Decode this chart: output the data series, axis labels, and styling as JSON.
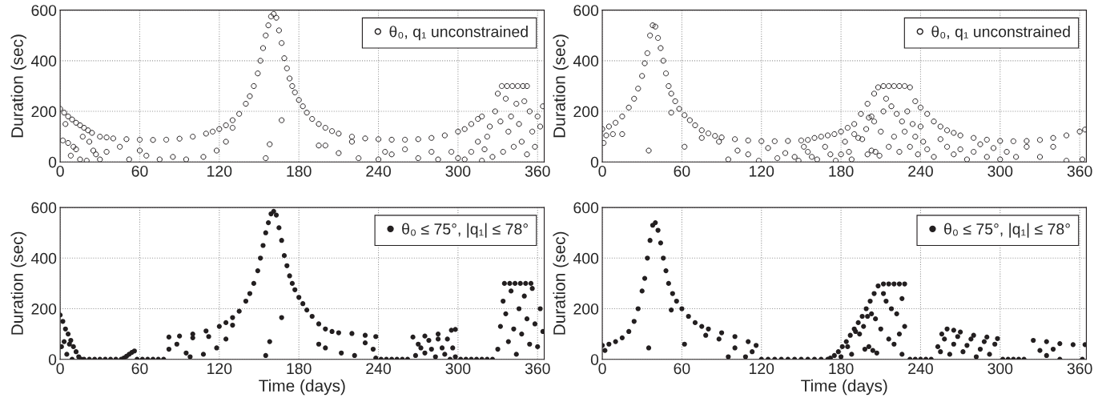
{
  "chart_data": [
    {
      "type": "scatter",
      "ylabel": "Duration (sec)",
      "xlim": [
        0,
        365
      ],
      "xticks": [
        0,
        60,
        120,
        180,
        240,
        300,
        360
      ],
      "ylim": [
        0,
        600
      ],
      "yticks": [
        0,
        200,
        400,
        600
      ],
      "grid": true,
      "legend": "top right",
      "marker": "circle",
      "series": [
        {
          "name": "θ₀, q₁ unconstrained",
          "color": "#231f20",
          "x": [
            0,
            3,
            6,
            9,
            12,
            15,
            18,
            21,
            24,
            30,
            35,
            40,
            50,
            60,
            70,
            80,
            90,
            100,
            110,
            115,
            120,
            125,
            130,
            135,
            140,
            143,
            146,
            149,
            151,
            153,
            155,
            157,
            159,
            161,
            163,
            165,
            167,
            169,
            171,
            173,
            175,
            177,
            180,
            183,
            186,
            190,
            195,
            200,
            205,
            210,
            220,
            230,
            240,
            250,
            260,
            270,
            280,
            290,
            300,
            305,
            310,
            315,
            318,
            333,
            337,
            341,
            345,
            349,
            352,
            2,
            4,
            6,
            8,
            10,
            12,
            15,
            17,
            20,
            22,
            25,
            27,
            30,
            35,
            45,
            52,
            60,
            65,
            75,
            85,
            95,
            108,
            118,
            125,
            130,
            155,
            158,
            167,
            195,
            200,
            210,
            220,
            225,
            240,
            245,
            250,
            260,
            270,
            280,
            285,
            295,
            300,
            305,
            310,
            315,
            318,
            320,
            322,
            324,
            326,
            328,
            330,
            332,
            334,
            336,
            338,
            340,
            342,
            344,
            346,
            348,
            350,
            352,
            354,
            356,
            358,
            360,
            362,
            364
          ],
          "values": [
            210,
            195,
            180,
            168,
            155,
            145,
            135,
            125,
            115,
            100,
            97,
            93,
            90,
            88,
            87,
            88,
            92,
            100,
            112,
            120,
            130,
            145,
            165,
            190,
            230,
            260,
            300,
            350,
            400,
            450,
            500,
            540,
            575,
            585,
            570,
            520,
            470,
            410,
            370,
            330,
            300,
            275,
            245,
            220,
            195,
            170,
            150,
            135,
            122,
            112,
            100,
            93,
            90,
            88,
            88,
            90,
            95,
            105,
            120,
            130,
            150,
            170,
            180,
            300,
            300,
            300,
            300,
            300,
            300,
            85,
            150,
            75,
            25,
            60,
            50,
            10,
            100,
            5,
            80,
            45,
            30,
            10,
            40,
            60,
            10,
            45,
            25,
            10,
            20,
            10,
            20,
            45,
            80,
            135,
            15,
            70,
            165,
            65,
            65,
            35,
            80,
            15,
            10,
            40,
            30,
            50,
            15,
            40,
            10,
            40,
            15,
            10,
            40,
            80,
            5,
            50,
            100,
            140,
            20,
            200,
            270,
            160,
            40,
            250,
            120,
            180,
            60,
            230,
            150,
            80,
            240,
            30,
            200,
            120,
            60,
            180,
            140,
            220
          ]
        }
      ]
    },
    {
      "type": "scatter",
      "ylabel": "Duration (sec)",
      "xlim": [
        0,
        365
      ],
      "xticks": [
        0,
        60,
        120,
        180,
        240,
        300,
        360
      ],
      "ylim": [
        0,
        600
      ],
      "yticks": [
        0,
        200,
        400,
        600
      ],
      "grid": true,
      "legend": "top right",
      "marker": "circle",
      "series": [
        {
          "name": "θ₀, q₁ unconstrained",
          "color": "#231f20",
          "x": [
            0,
            5,
            10,
            15,
            20,
            24,
            27,
            30,
            32,
            34,
            36,
            38,
            40,
            42,
            44,
            46,
            48,
            50,
            52,
            55,
            58,
            62,
            66,
            70,
            75,
            80,
            85,
            90,
            100,
            110,
            120,
            130,
            140,
            150,
            155,
            160,
            165,
            170,
            175,
            180,
            185,
            190,
            195,
            200,
            205,
            208,
            212,
            216,
            220,
            224,
            228,
            232,
            236,
            240,
            245,
            250,
            255,
            260,
            265,
            270,
            280,
            290,
            300,
            310,
            320,
            330,
            340,
            350,
            360,
            364,
            1,
            3,
            8,
            15,
            35,
            52,
            62,
            75,
            88,
            95,
            102,
            110,
            118,
            125,
            132,
            138,
            145,
            148,
            152,
            155,
            158,
            162,
            168,
            172,
            176,
            180,
            183,
            186,
            188,
            190,
            193,
            196,
            199,
            201,
            203,
            205,
            200,
            203,
            206,
            209,
            210,
            212,
            214,
            216,
            218,
            220,
            222,
            224,
            226,
            228,
            230,
            232,
            234,
            236,
            238,
            240,
            242,
            245,
            250,
            255,
            260,
            265,
            270,
            275,
            280,
            285,
            290,
            295,
            300,
            305,
            312,
            320,
            330,
            340,
            350,
            362
          ],
          "values": [
            130,
            140,
            155,
            180,
            215,
            250,
            290,
            340,
            390,
            430,
            500,
            540,
            535,
            490,
            450,
            400,
            350,
            300,
            270,
            240,
            210,
            185,
            165,
            145,
            125,
            113,
            103,
            97,
            90,
            85,
            82,
            82,
            83,
            85,
            87,
            95,
            100,
            105,
            110,
            120,
            135,
            150,
            190,
            230,
            270,
            295,
            300,
            300,
            300,
            300,
            300,
            295,
            240,
            215,
            190,
            160,
            140,
            125,
            115,
            105,
            95,
            88,
            83,
            82,
            83,
            87,
            95,
            105,
            120,
            128,
            75,
            105,
            110,
            110,
            45,
            195,
            60,
            95,
            80,
            10,
            45,
            30,
            5,
            55,
            15,
            35,
            20,
            5,
            60,
            40,
            20,
            10,
            60,
            30,
            5,
            30,
            80,
            40,
            10,
            110,
            95,
            90,
            130,
            175,
            180,
            160,
            30,
            45,
            40,
            25,
            120,
            200,
            250,
            60,
            220,
            100,
            190,
            40,
            160,
            120,
            200,
            60,
            150,
            100,
            30,
            140,
            80,
            50,
            20,
            90,
            60,
            30,
            50,
            10,
            40,
            70,
            20,
            55,
            10,
            40,
            20,
            60,
            20,
            60,
            5,
            10
          ]
        }
      ]
    },
    {
      "type": "scatter",
      "xlabel": "Time (days)",
      "ylabel": "Duration (sec)",
      "xlim": [
        0,
        365
      ],
      "xticks": [
        0,
        60,
        120,
        180,
        240,
        300,
        360
      ],
      "ylim": [
        0,
        600
      ],
      "yticks": [
        0,
        200,
        400,
        600
      ],
      "grid": true,
      "legend": "top right",
      "marker": "circle",
      "series": [
        {
          "name": "θ₀ ≤ 75°, |q₁| ≤ 78°",
          "color": "#231f20",
          "x": [
            0,
            2,
            4,
            6,
            8,
            10,
            12,
            14,
            16,
            18,
            22,
            26,
            30,
            34,
            38,
            42,
            46,
            48,
            50,
            52,
            54,
            56,
            58,
            62,
            66,
            70,
            74,
            78,
            82,
            90,
            100,
            110,
            120,
            125,
            130,
            135,
            140,
            143,
            146,
            149,
            151,
            153,
            155,
            157,
            159,
            161,
            163,
            165,
            167,
            169,
            171,
            173,
            175,
            177,
            180,
            183,
            186,
            190,
            195,
            200,
            205,
            210,
            220,
            230,
            238,
            242,
            246,
            250,
            254,
            258,
            262,
            266,
            275,
            285,
            295,
            298,
            302,
            306,
            310,
            314,
            318,
            322,
            326,
            335,
            339,
            343,
            347,
            351,
            355,
            1,
            3,
            5,
            7,
            9,
            82,
            88,
            95,
            98,
            100,
            108,
            112,
            118,
            125,
            130,
            155,
            158,
            167,
            195,
            200,
            212,
            222,
            230,
            236,
            238,
            268,
            270,
            272,
            275,
            278,
            280,
            283,
            285,
            288,
            290,
            292,
            294,
            296,
            298,
            330,
            332,
            334,
            336,
            338,
            340,
            342,
            344,
            346,
            348,
            350,
            352,
            354,
            356,
            358,
            360,
            362,
            364
          ],
          "values": [
            175,
            150,
            120,
            100,
            75,
            50,
            30,
            10,
            0,
            0,
            0,
            0,
            0,
            0,
            0,
            0,
            0,
            5,
            12,
            20,
            27,
            33,
            0,
            0,
            0,
            0,
            0,
            0,
            88,
            92,
            100,
            112,
            130,
            145,
            165,
            190,
            230,
            260,
            300,
            350,
            400,
            450,
            500,
            540,
            575,
            585,
            570,
            520,
            470,
            410,
            370,
            330,
            300,
            275,
            245,
            220,
            195,
            170,
            140,
            120,
            110,
            105,
            102,
            95,
            90,
            0,
            0,
            0,
            0,
            0,
            0,
            88,
            92,
            100,
            115,
            118,
            0,
            0,
            0,
            0,
            0,
            0,
            0,
            300,
            300,
            300,
            300,
            300,
            300,
            50,
            70,
            20,
            60,
            0,
            40,
            60,
            25,
            10,
            85,
            20,
            90,
            45,
            80,
            135,
            15,
            70,
            165,
            60,
            45,
            25,
            15,
            65,
            40,
            5,
            15,
            60,
            45,
            25,
            75,
            40,
            10,
            80,
            45,
            20,
            80,
            0,
            45,
            10,
            40,
            130,
            230,
            180,
            70,
            270,
            120,
            20,
            200,
            100,
            250,
            160,
            60,
            280,
            140,
            50,
            200,
            110
          ]
        }
      ]
    },
    {
      "type": "scatter",
      "xlabel": "Time (days)",
      "ylabel": "Duration (sec)",
      "xlim": [
        0,
        365
      ],
      "xticks": [
        0,
        60,
        120,
        180,
        240,
        300,
        360
      ],
      "ylim": [
        0,
        600
      ],
      "yticks": [
        0,
        200,
        400,
        600
      ],
      "grid": true,
      "legend": "top right",
      "marker": "circle",
      "series": [
        {
          "name": "θ₀ ≤ 75°, |q₁| ≤ 78°",
          "color": "#231f20",
          "x": [
            0,
            5,
            10,
            15,
            20,
            24,
            27,
            30,
            32,
            34,
            36,
            38,
            40,
            42,
            44,
            46,
            48,
            50,
            53,
            56,
            60,
            65,
            70,
            75,
            80,
            90,
            100,
            110,
            116,
            120,
            125,
            130,
            135,
            140,
            145,
            150,
            155,
            160,
            165,
            170,
            172,
            175,
            178,
            181,
            184,
            187,
            190,
            193,
            196,
            199,
            202,
            205,
            208,
            212,
            216,
            220,
            224,
            228,
            232,
            236,
            240,
            244,
            248,
            253,
            256,
            260,
            265,
            270,
            280,
            290,
            298,
            302,
            306,
            310,
            314,
            318,
            325,
            335,
            345,
            355,
            364,
            2,
            35,
            52,
            62,
            78,
            88,
            95,
            100,
            108,
            113,
            180,
            185,
            188,
            191,
            194,
            197,
            200,
            203,
            206,
            198,
            201,
            204,
            207,
            210,
            212,
            214,
            216,
            218,
            220,
            222,
            224,
            226,
            228,
            226,
            255,
            258,
            262,
            265,
            268,
            272,
            275,
            278,
            282,
            285,
            288,
            292,
            296,
            330,
            335,
            340,
            345,
            362
          ],
          "values": [
            55,
            60,
            70,
            85,
            110,
            150,
            200,
            270,
            320,
            400,
            470,
            530,
            540,
            510,
            460,
            400,
            350,
            300,
            260,
            230,
            200,
            170,
            145,
            130,
            120,
            105,
            90,
            70,
            55,
            0,
            0,
            0,
            0,
            0,
            0,
            0,
            0,
            0,
            0,
            0,
            5,
            15,
            30,
            50,
            70,
            95,
            120,
            145,
            170,
            200,
            230,
            260,
            290,
            298,
            298,
            298,
            298,
            298,
            0,
            0,
            0,
            0,
            0,
            50,
            100,
            120,
            115,
            108,
            95,
            88,
            82,
            0,
            0,
            0,
            0,
            0,
            75,
            70,
            62,
            58,
            58,
            35,
            45,
            195,
            60,
            95,
            80,
            10,
            45,
            10,
            30,
            10,
            50,
            20,
            110,
            100,
            130,
            170,
            180,
            160,
            40,
            50,
            35,
            25,
            120,
            260,
            230,
            80,
            200,
            60,
            180,
            100,
            240,
            130,
            20,
            30,
            80,
            20,
            60,
            90,
            30,
            55,
            80,
            10,
            40,
            70,
            20,
            60,
            35,
            15,
            40,
            0,
            0
          ]
        }
      ]
    }
  ]
}
